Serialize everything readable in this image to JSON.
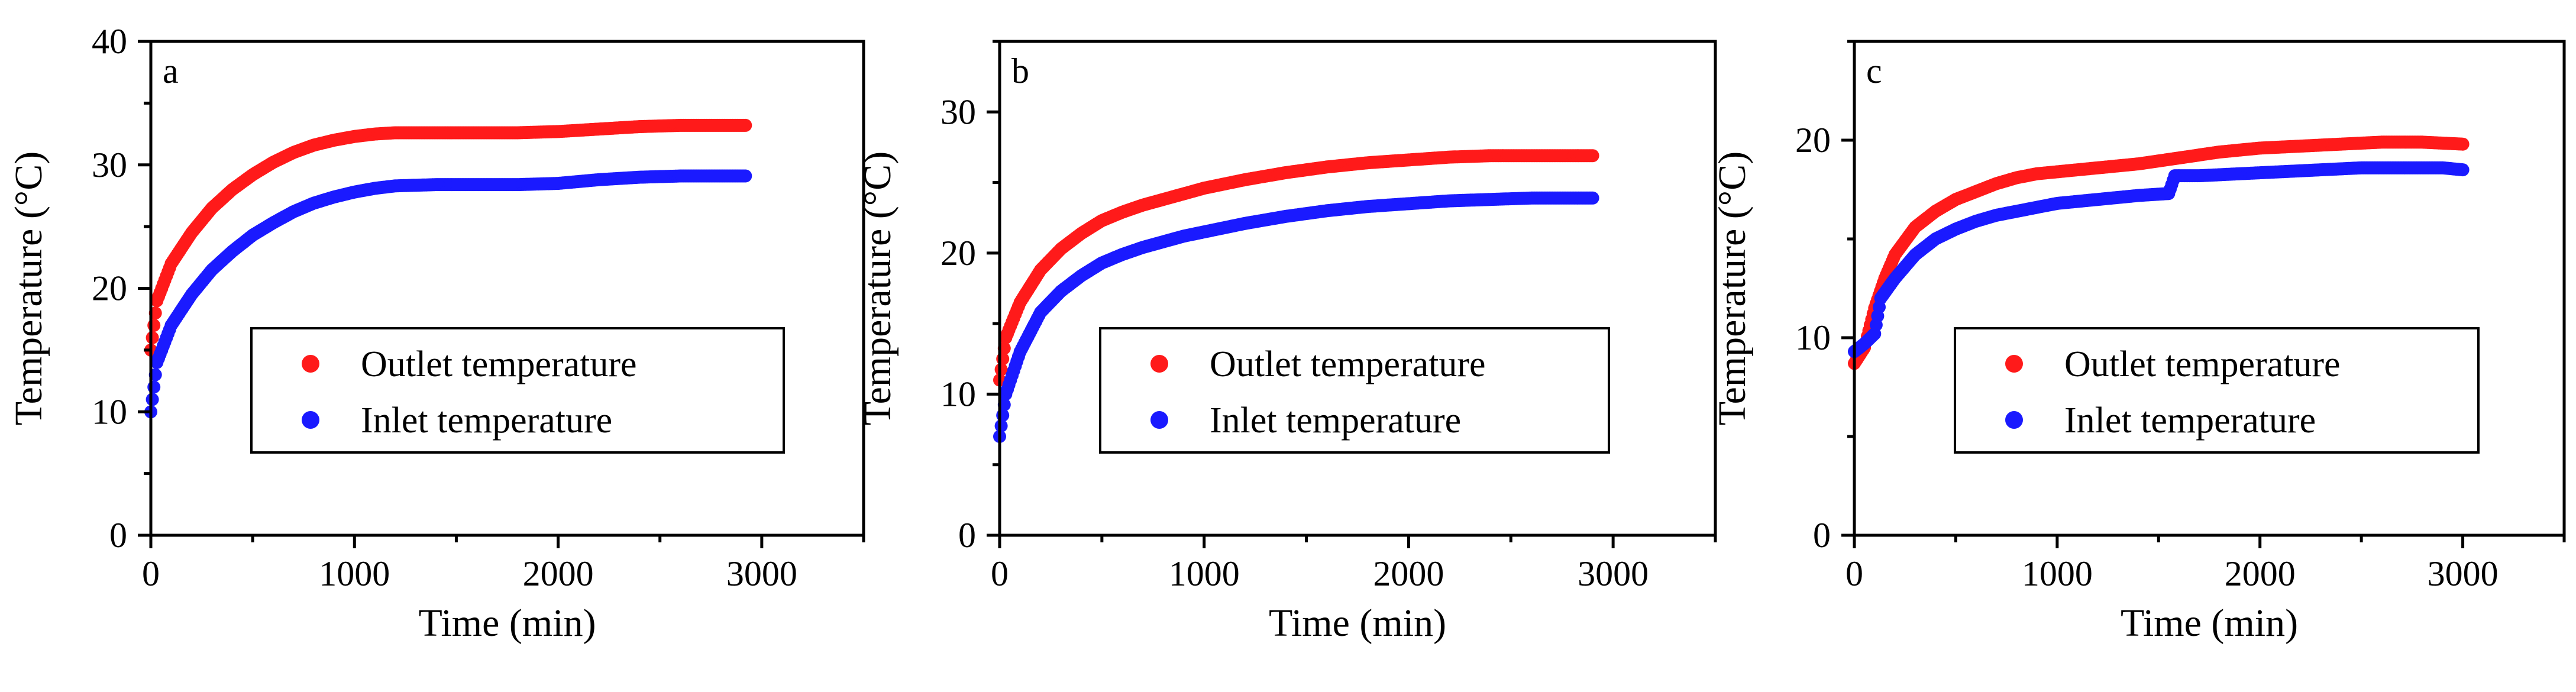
{
  "chart_data": [
    {
      "type": "scatter",
      "panel_label": "a",
      "xlabel": "Time (min)",
      "ylabel": "Temperature (°C)",
      "xlim": [
        0,
        3500
      ],
      "ylim": [
        0,
        40
      ],
      "xticks": [
        0,
        1000,
        2000,
        3000
      ],
      "yticks": [
        0,
        10,
        20,
        30,
        40
      ],
      "legend_position": "center-right",
      "series": [
        {
          "name": "Outlet temperature",
          "color": "#ff1a1a",
          "points": [
            [
              0,
              15
            ],
            [
              30,
              19
            ],
            [
              100,
              22
            ],
            [
              200,
              24.5
            ],
            [
              300,
              26.5
            ],
            [
              400,
              28
            ],
            [
              500,
              29.2
            ],
            [
              600,
              30.2
            ],
            [
              700,
              31
            ],
            [
              800,
              31.6
            ],
            [
              900,
              32
            ],
            [
              1000,
              32.3
            ],
            [
              1100,
              32.5
            ],
            [
              1200,
              32.6
            ],
            [
              1400,
              32.6
            ],
            [
              1600,
              32.6
            ],
            [
              1800,
              32.6
            ],
            [
              2000,
              32.7
            ],
            [
              2200,
              32.9
            ],
            [
              2400,
              33.1
            ],
            [
              2600,
              33.2
            ],
            [
              2800,
              33.2
            ],
            [
              2920,
              33.2
            ]
          ]
        },
        {
          "name": "Inlet temperature",
          "color": "#1a1aff",
          "points": [
            [
              0,
              10
            ],
            [
              30,
              14
            ],
            [
              100,
              17
            ],
            [
              200,
              19.5
            ],
            [
              300,
              21.5
            ],
            [
              400,
              23
            ],
            [
              500,
              24.3
            ],
            [
              600,
              25.3
            ],
            [
              700,
              26.2
            ],
            [
              800,
              26.9
            ],
            [
              900,
              27.4
            ],
            [
              1000,
              27.8
            ],
            [
              1100,
              28.1
            ],
            [
              1200,
              28.3
            ],
            [
              1400,
              28.4
            ],
            [
              1600,
              28.4
            ],
            [
              1800,
              28.4
            ],
            [
              2000,
              28.5
            ],
            [
              2200,
              28.8
            ],
            [
              2400,
              29
            ],
            [
              2600,
              29.1
            ],
            [
              2800,
              29.1
            ],
            [
              2920,
              29.1
            ]
          ]
        }
      ]
    },
    {
      "type": "scatter",
      "panel_label": "b",
      "xlabel": "Time (min)",
      "ylabel": "Temperature (°C)",
      "xlim": [
        0,
        3500
      ],
      "ylim": [
        0,
        35
      ],
      "xticks": [
        0,
        1000,
        2000,
        3000
      ],
      "yticks": [
        0,
        10,
        20,
        30
      ],
      "legend_position": "center-right",
      "series": [
        {
          "name": "Outlet temperature",
          "color": "#ff1a1a",
          "points": [
            [
              0,
              11
            ],
            [
              30,
              14
            ],
            [
              100,
              16.5
            ],
            [
              200,
              18.8
            ],
            [
              300,
              20.3
            ],
            [
              400,
              21.4
            ],
            [
              500,
              22.3
            ],
            [
              600,
              22.9
            ],
            [
              700,
              23.4
            ],
            [
              800,
              23.8
            ],
            [
              900,
              24.2
            ],
            [
              1000,
              24.6
            ],
            [
              1200,
              25.2
            ],
            [
              1400,
              25.7
            ],
            [
              1600,
              26.1
            ],
            [
              1800,
              26.4
            ],
            [
              2000,
              26.6
            ],
            [
              2200,
              26.8
            ],
            [
              2400,
              26.9
            ],
            [
              2600,
              26.9
            ],
            [
              2800,
              26.9
            ],
            [
              2900,
              26.9
            ]
          ]
        },
        {
          "name": "Inlet temperature",
          "color": "#1a1aff",
          "points": [
            [
              0,
              7
            ],
            [
              30,
              10
            ],
            [
              100,
              13
            ],
            [
              200,
              15.8
            ],
            [
              300,
              17.3
            ],
            [
              400,
              18.4
            ],
            [
              500,
              19.3
            ],
            [
              600,
              19.9
            ],
            [
              700,
              20.4
            ],
            [
              800,
              20.8
            ],
            [
              900,
              21.2
            ],
            [
              1000,
              21.5
            ],
            [
              1200,
              22.1
            ],
            [
              1400,
              22.6
            ],
            [
              1600,
              23
            ],
            [
              1800,
              23.3
            ],
            [
              2000,
              23.5
            ],
            [
              2200,
              23.7
            ],
            [
              2400,
              23.8
            ],
            [
              2600,
              23.9
            ],
            [
              2800,
              23.9
            ],
            [
              2900,
              23.9
            ]
          ]
        }
      ]
    },
    {
      "type": "scatter",
      "panel_label": "c",
      "xlabel": "Time (min)",
      "ylabel": "Temperature (°C)",
      "xlim": [
        0,
        3500
      ],
      "ylim": [
        0,
        25
      ],
      "xticks": [
        0,
        1000,
        2000,
        3000
      ],
      "yticks": [
        0,
        10,
        20
      ],
      "legend_position": "center-right",
      "series": [
        {
          "name": "Outlet temperature",
          "color": "#ff1a1a",
          "points": [
            [
              0,
              8.7
            ],
            [
              50,
              9.5
            ],
            [
              100,
              11.5
            ],
            [
              150,
              13
            ],
            [
              200,
              14.2
            ],
            [
              300,
              15.6
            ],
            [
              400,
              16.4
            ],
            [
              500,
              17
            ],
            [
              600,
              17.4
            ],
            [
              700,
              17.8
            ],
            [
              800,
              18.1
            ],
            [
              900,
              18.3
            ],
            [
              1000,
              18.4
            ],
            [
              1200,
              18.6
            ],
            [
              1400,
              18.8
            ],
            [
              1600,
              19.1
            ],
            [
              1800,
              19.4
            ],
            [
              2000,
              19.6
            ],
            [
              2200,
              19.7
            ],
            [
              2400,
              19.8
            ],
            [
              2600,
              19.9
            ],
            [
              2800,
              19.9
            ],
            [
              3000,
              19.8
            ]
          ]
        },
        {
          "name": "Inlet temperature",
          "color": "#1a1aff",
          "points": [
            [
              0,
              9.3
            ],
            [
              50,
              9.7
            ],
            [
              100,
              10.2
            ],
            [
              130,
              12
            ],
            [
              200,
              13
            ],
            [
              300,
              14.2
            ],
            [
              400,
              15
            ],
            [
              500,
              15.5
            ],
            [
              600,
              15.9
            ],
            [
              700,
              16.2
            ],
            [
              800,
              16.4
            ],
            [
              900,
              16.6
            ],
            [
              1000,
              16.8
            ],
            [
              1200,
              17
            ],
            [
              1400,
              17.2
            ],
            [
              1550,
              17.3
            ],
            [
              1580,
              18.2
            ],
            [
              1700,
              18.2
            ],
            [
              1900,
              18.3
            ],
            [
              2100,
              18.4
            ],
            [
              2300,
              18.5
            ],
            [
              2500,
              18.6
            ],
            [
              2700,
              18.6
            ],
            [
              2900,
              18.6
            ],
            [
              3000,
              18.5
            ]
          ]
        }
      ]
    }
  ]
}
